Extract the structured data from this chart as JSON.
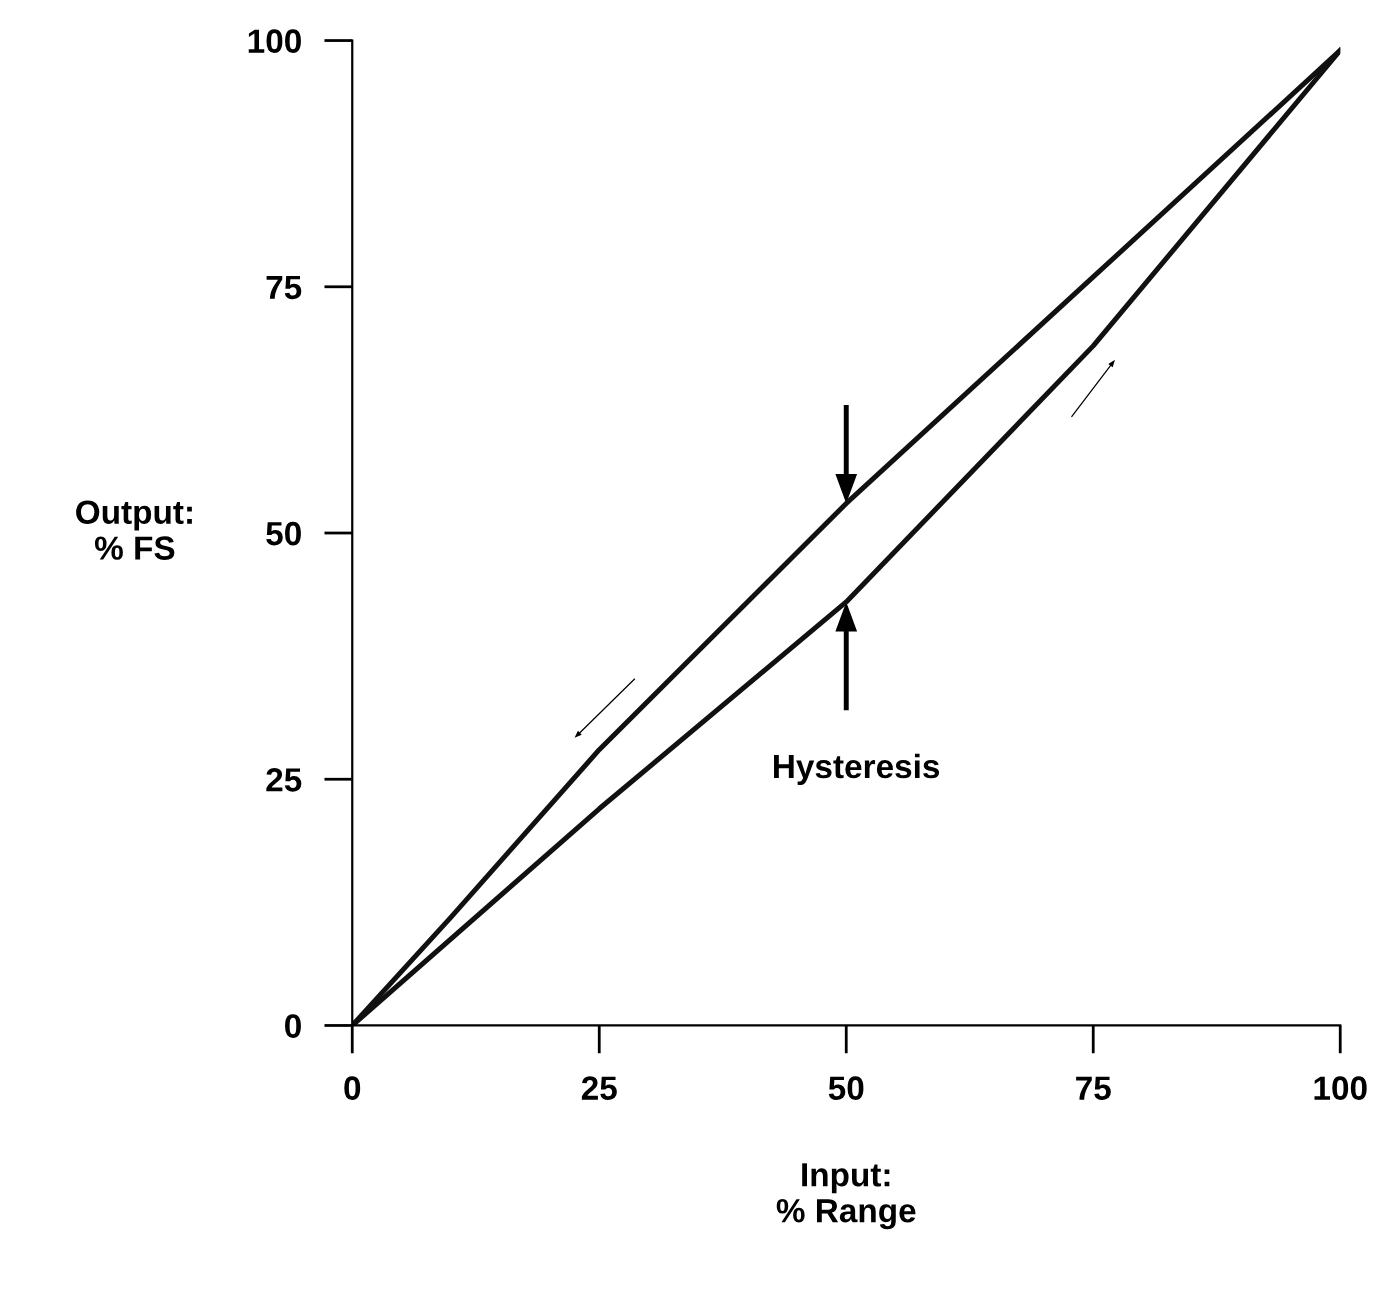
{
  "chart_data": {
    "type": "line",
    "xlabel": "Input:\n% Range",
    "ylabel": "Output:\n% FS",
    "series": [
      {
        "color": "#111111",
        "x": [
          0,
          10,
          25,
          50,
          75,
          100
        ],
        "values": [
          0,
          11,
          28,
          53,
          76,
          99
        ]
      },
      {
        "color": "#111111",
        "x": [
          0,
          25,
          50,
          75,
          100
        ],
        "values": [
          0,
          22,
          43,
          69,
          99
        ]
      }
    ],
    "annotations": [
      "Hysteresis"
    ],
    "xlim": [
      0,
      100
    ],
    "ylim": [
      0,
      100
    ],
    "xticks": [
      0,
      25,
      50,
      75,
      100
    ],
    "yticks": [
      0,
      25,
      50,
      75,
      100
    ],
    "grid": false,
    "legend": false,
    "marker": "none",
    "line_style": "solid"
  }
}
